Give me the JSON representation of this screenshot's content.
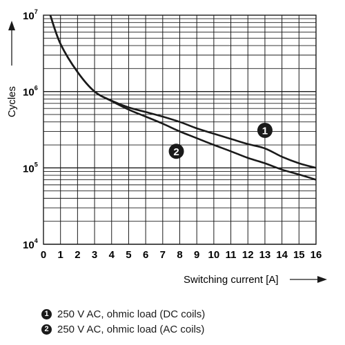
{
  "chart_data": {
    "type": "line",
    "title": "",
    "xlabel": "Switching current [A]",
    "ylabel": "Cycles",
    "yscale": "log",
    "xlim": [
      0,
      16
    ],
    "ylim": [
      10000,
      10000000
    ],
    "x_ticks": [
      "0",
      "1",
      "2",
      "3",
      "4",
      "5",
      "6",
      "7",
      "8",
      "9",
      "10",
      "11",
      "12",
      "13",
      "14",
      "15",
      "16"
    ],
    "y_ticks": [
      {
        "base": "10",
        "exp": "4",
        "value": 10000
      },
      {
        "base": "10",
        "exp": "5",
        "value": 100000
      },
      {
        "base": "10",
        "exp": "6",
        "value": 1000000
      },
      {
        "base": "10",
        "exp": "7",
        "value": 10000000
      }
    ],
    "grid": true,
    "series": [
      {
        "marker": "1",
        "name": "250 V AC, ohmic load (DC coils)",
        "x": [
          0.4,
          1,
          2,
          3,
          4,
          5,
          6,
          7,
          8,
          9,
          10,
          11,
          12,
          13,
          14,
          15,
          16
        ],
        "y": [
          10000000,
          4200000,
          1800000,
          1000000,
          760000,
          620000,
          540000,
          470000,
          400000,
          330000,
          280000,
          240000,
          205000,
          180000,
          140000,
          115000,
          100000
        ]
      },
      {
        "marker": "2",
        "name": "250 V AC, ohmic load (AC coils)",
        "x": [
          0.4,
          1,
          2,
          3,
          4,
          5,
          6,
          7,
          8,
          9,
          10,
          11,
          12,
          13,
          14,
          15,
          16
        ],
        "y": [
          10000000,
          4200000,
          1800000,
          1000000,
          750000,
          580000,
          470000,
          380000,
          300000,
          245000,
          200000,
          165000,
          135000,
          115000,
          95000,
          82000,
          70000
        ]
      }
    ],
    "annotations": [
      {
        "label": "1",
        "x": 13,
        "y": 310000
      },
      {
        "label": "2",
        "x": 7.8,
        "y": 165000
      }
    ]
  },
  "legend": [
    {
      "num": "1",
      "text": "250 V AC, ohmic load (DC coils)"
    },
    {
      "num": "2",
      "text": "250 V AC, ohmic load (AC coils)"
    }
  ]
}
